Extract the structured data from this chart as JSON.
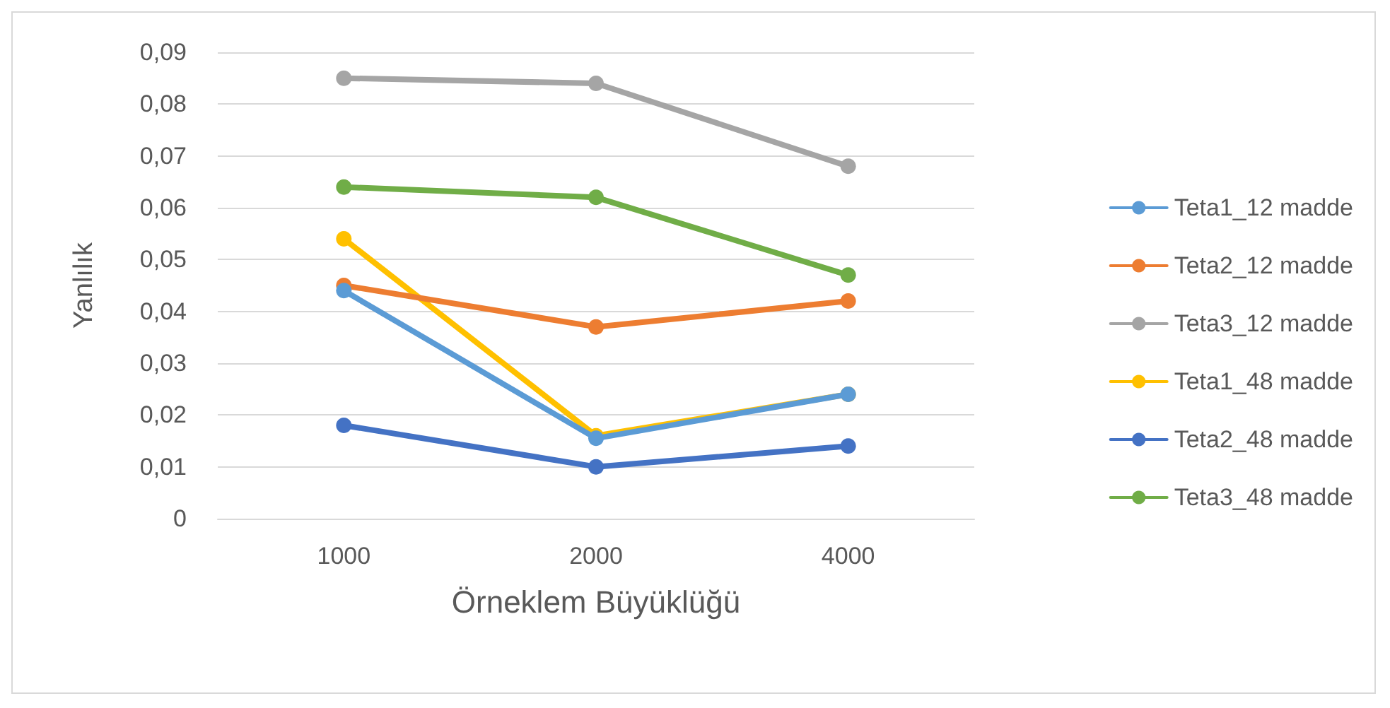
{
  "chart_data": {
    "type": "line",
    "xlabel": "Örneklem Büyüklüğü",
    "ylabel": "Yanlılık",
    "categories": [
      "1000",
      "2000",
      "4000"
    ],
    "ylim": [
      0,
      0.09
    ],
    "yticks": [
      0,
      {
        "value": 0.01,
        "label": "0,01"
      },
      {
        "value": 0.02,
        "label": "0,02"
      },
      {
        "value": 0.03,
        "label": "0,03"
      },
      {
        "value": 0.04,
        "label": "0,04"
      },
      {
        "value": 0.05,
        "label": "0,05"
      },
      {
        "value": 0.06,
        "label": "0,06"
      },
      {
        "value": 0.07,
        "label": "0,07"
      },
      {
        "value": 0.08,
        "label": "0,08"
      },
      {
        "value": 0.09,
        "label": "0,09"
      }
    ],
    "grid": "y",
    "legend": "right",
    "marker": "circle",
    "line_style": "solid",
    "series": [
      {
        "name": "Teta1_12 madde",
        "color": "#5b9bd5",
        "values": [
          0.044,
          0.0155,
          0.024
        ]
      },
      {
        "name": "Teta2_12 madde",
        "color": "#ed7d31",
        "values": [
          0.045,
          0.037,
          0.042
        ]
      },
      {
        "name": "Teta3_12 madde",
        "color": "#a5a5a5",
        "values": [
          0.085,
          0.084,
          0.068
        ]
      },
      {
        "name": "Teta1_48 madde",
        "color": "#ffc000",
        "values": [
          0.054,
          0.016,
          0.024
        ]
      },
      {
        "name": "Teta2_48 madde",
        "color": "#4472c4",
        "values": [
          0.018,
          0.01,
          0.014
        ]
      },
      {
        "name": "Teta3_48 madde",
        "color": "#70ad47",
        "values": [
          0.064,
          0.062,
          0.047
        ]
      }
    ]
  }
}
